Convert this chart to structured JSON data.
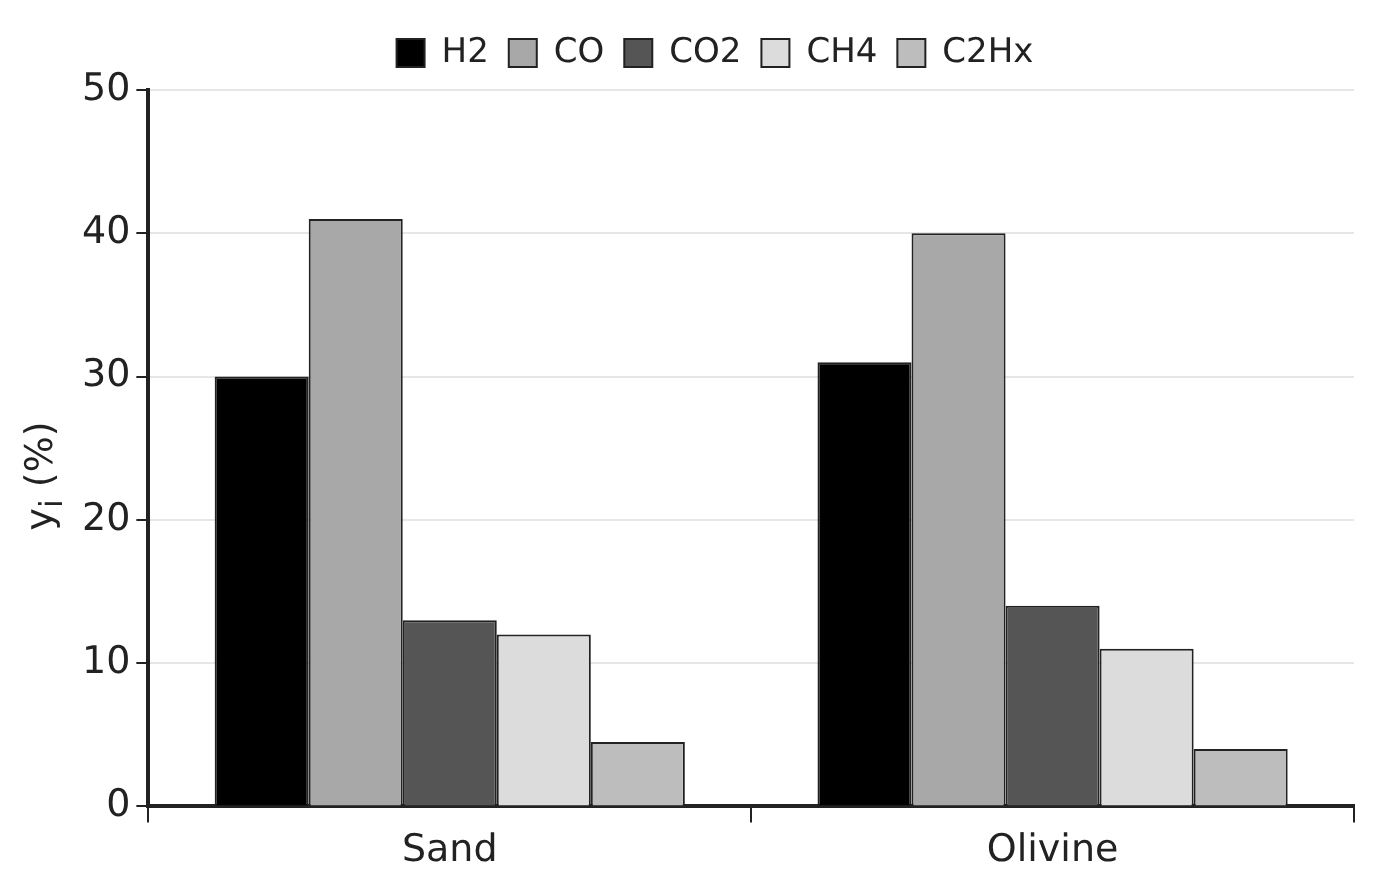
{
  "chart_data": {
    "type": "bar",
    "categories": [
      "Sand",
      "Olivine"
    ],
    "ylabel": "y$_{i}$ (%)",
    "ylim": [
      0,
      50
    ],
    "yticks": [
      0,
      10,
      20,
      30,
      40,
      50
    ],
    "grid": "y",
    "legend": "top",
    "series": [
      {
        "name": "H2",
        "color": "#000000",
        "values": [
          30,
          31
        ]
      },
      {
        "name": "CO",
        "color": "#a8a8a8",
        "values": [
          41,
          40
        ]
      },
      {
        "name": "CO2",
        "color": "#555555",
        "values": [
          13,
          14
        ]
      },
      {
        "name": "CH4",
        "color": "#dcdcdc",
        "values": [
          12,
          11
        ]
      },
      {
        "name": "C2Hx",
        "color": "#bdbdbd",
        "values": [
          4.5,
          4
        ]
      }
    ]
  }
}
